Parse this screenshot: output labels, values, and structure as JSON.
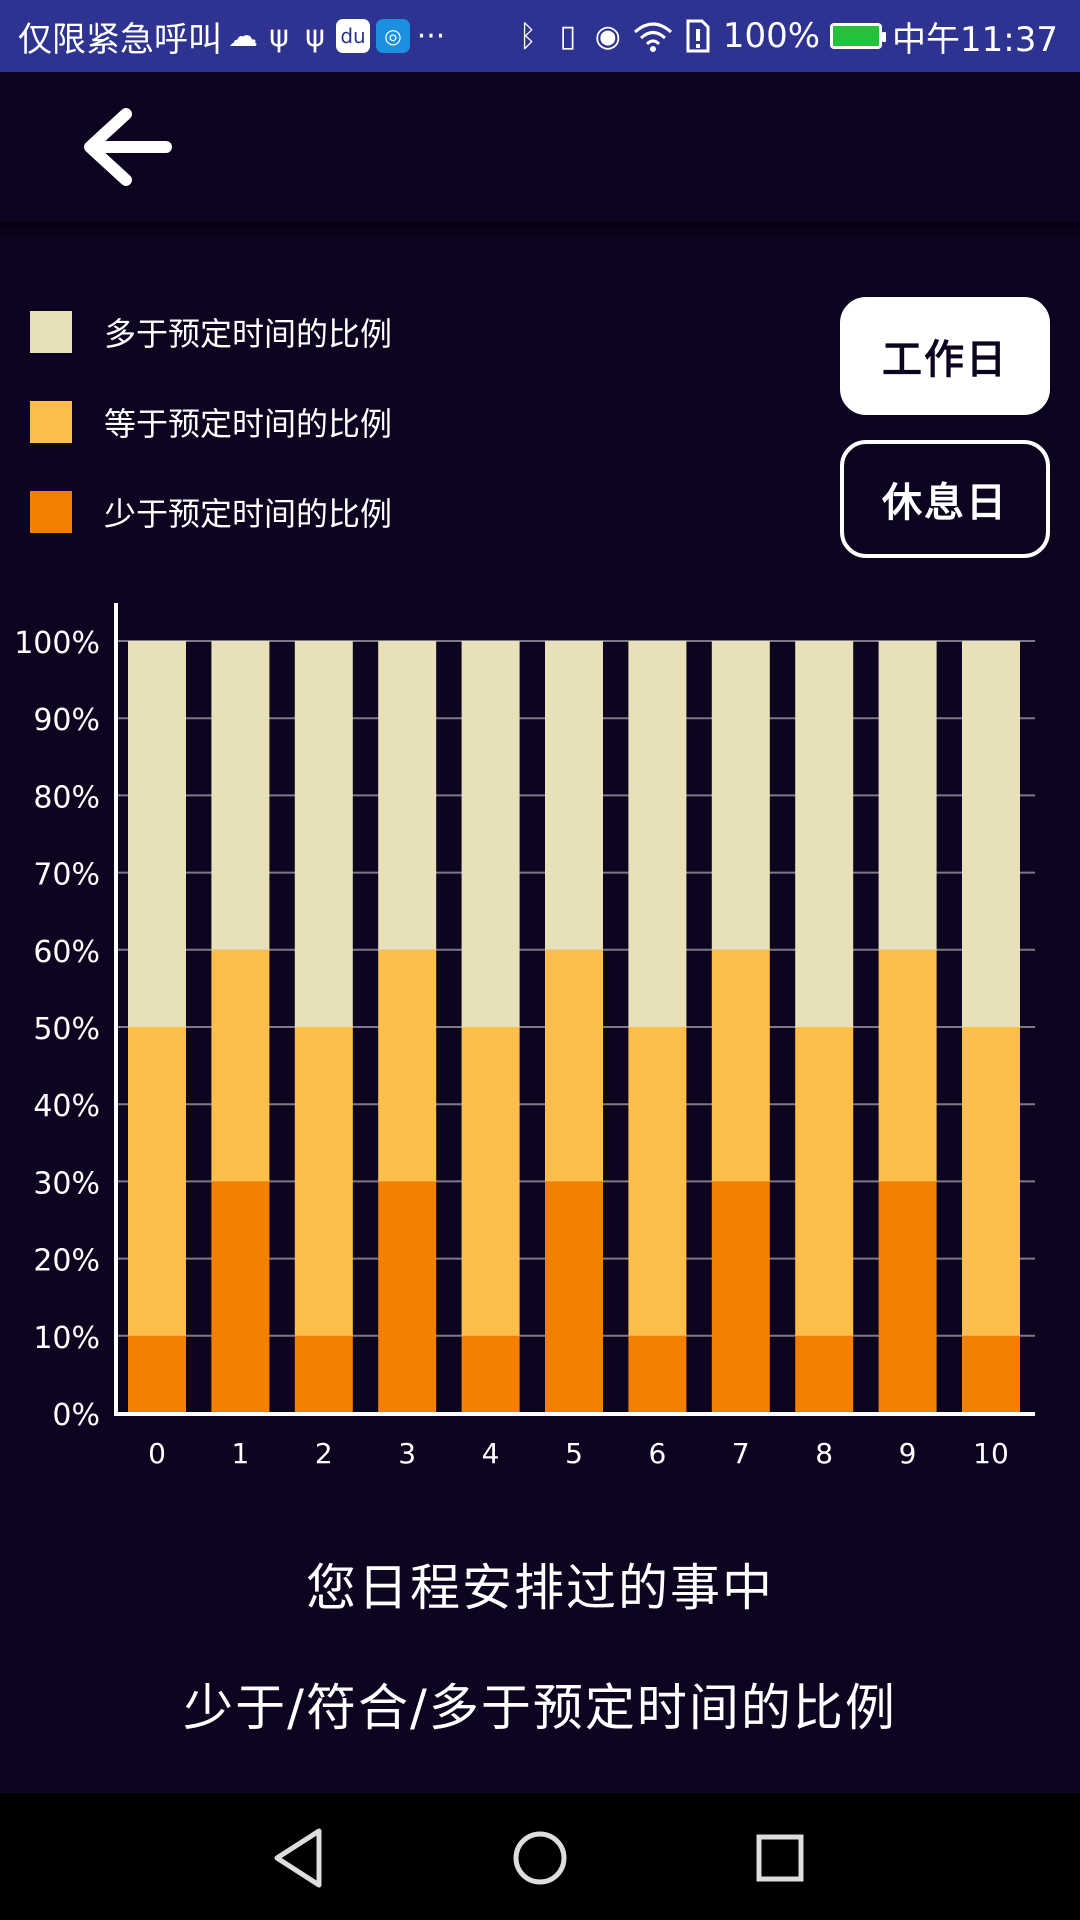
{
  "status_bar": {
    "carrier": "仅限紧急呼叫",
    "battery_percent": "100%",
    "time": "中午11:37",
    "icons": [
      "weather-cloud-icon",
      "usb-icon",
      "usb-icon",
      "baidu-app-icon",
      "app-icon",
      "more-icon",
      "bluetooth-icon",
      "vibrate-icon",
      "eye-icon",
      "wifi-icon",
      "sim-alert-icon"
    ],
    "colors": {
      "background": "#2e3391",
      "battery_fill": "#22c33a"
    }
  },
  "appbar": {
    "back_icon": "arrow-left-icon"
  },
  "legend": [
    {
      "label": "多于预定时间的比例",
      "color": "#e8e0b8"
    },
    {
      "label": "等于预定时间的比例",
      "color": "#fdbf4b"
    },
    {
      "label": "少于预定时间的比例",
      "color": "#f57f00"
    }
  ],
  "toggles": {
    "workday": "工作日",
    "restday": "休息日",
    "selected": "workday"
  },
  "chart_data": {
    "type": "bar",
    "stacked": true,
    "categories": [
      "0",
      "1",
      "2",
      "3",
      "4",
      "5",
      "6",
      "7",
      "8",
      "9",
      "10"
    ],
    "series": [
      {
        "name": "少于预定时间的比例",
        "color": "#f57f00",
        "values": [
          10,
          30,
          10,
          30,
          10,
          30,
          10,
          30,
          10,
          30,
          10
        ]
      },
      {
        "name": "等于预定时间的比例",
        "color": "#fdbf4b",
        "values": [
          40,
          30,
          40,
          30,
          40,
          30,
          40,
          30,
          40,
          30,
          40
        ]
      },
      {
        "name": "多于预定时间的比例",
        "color": "#e8e0b8",
        "values": [
          50,
          40,
          50,
          40,
          50,
          40,
          50,
          40,
          50,
          40,
          50
        ]
      }
    ],
    "ylim": [
      0,
      100
    ],
    "yticks": [
      "0%",
      "10%",
      "20%",
      "30%",
      "40%",
      "50%",
      "60%",
      "70%",
      "80%",
      "90%",
      "100%"
    ],
    "grid": true,
    "legend_position": "top-left"
  },
  "footer": {
    "line1": "您日程安排过的事中",
    "line2": "少于/符合/多于预定时间的比例"
  },
  "navbar": {
    "back_icon": "triangle-back-icon",
    "home_icon": "circle-home-icon",
    "recents_icon": "square-recents-icon"
  }
}
